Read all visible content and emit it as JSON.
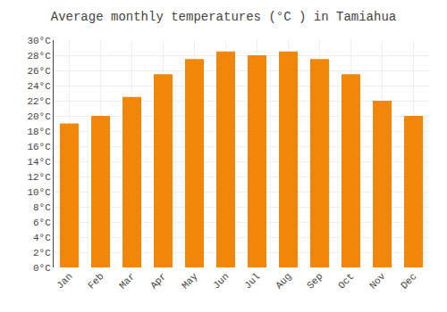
{
  "chart_data": {
    "type": "bar",
    "title": "Average monthly temperatures (°C ) in Tamiahua",
    "categories": [
      "Jan",
      "Feb",
      "Mar",
      "Apr",
      "May",
      "Jun",
      "Jul",
      "Aug",
      "Sep",
      "Oct",
      "Nov",
      "Dec"
    ],
    "values": [
      19,
      20,
      22.5,
      25.5,
      27.5,
      28.5,
      28,
      28.5,
      27.5,
      25.5,
      22,
      20
    ],
    "color": "#F0860A",
    "ylim": [
      0,
      30
    ],
    "yticks": [
      {
        "value": 0,
        "label": "0°C"
      },
      {
        "value": 2,
        "label": "2°C"
      },
      {
        "value": 4,
        "label": "4°C"
      },
      {
        "value": 6,
        "label": "6°C"
      },
      {
        "value": 8,
        "label": "8°C"
      },
      {
        "value": 10,
        "label": "10°C"
      },
      {
        "value": 12,
        "label": "12°C"
      },
      {
        "value": 14,
        "label": "14°C"
      },
      {
        "value": 16,
        "label": "16°C"
      },
      {
        "value": 18,
        "label": "18°C"
      },
      {
        "value": 20,
        "label": "20°C"
      },
      {
        "value": 22,
        "label": "22°C"
      },
      {
        "value": 24,
        "label": "24°C"
      },
      {
        "value": 26,
        "label": "26°C"
      },
      {
        "value": 28,
        "label": "28°C"
      },
      {
        "value": 30,
        "label": "30°C"
      }
    ],
    "grid": true
  }
}
